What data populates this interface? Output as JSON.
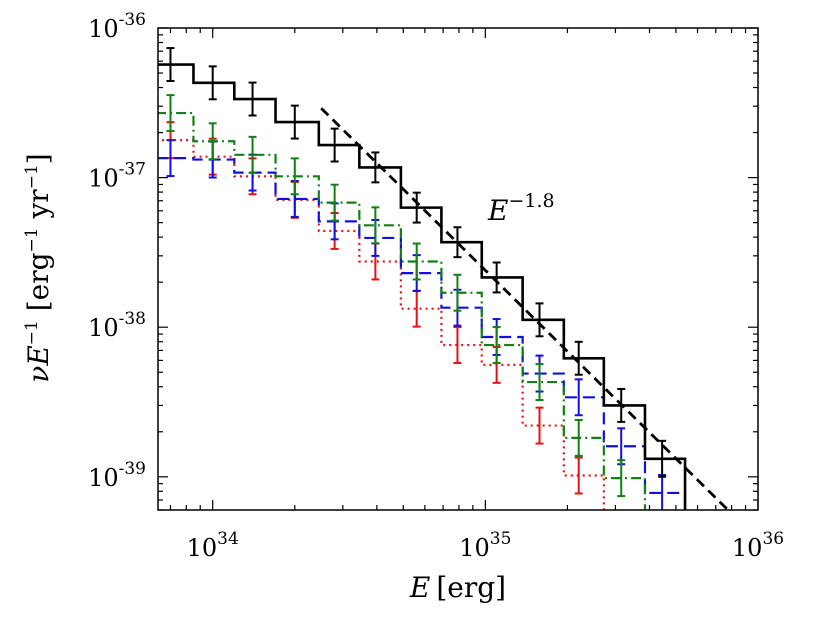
{
  "chart_data": {
    "type": "line",
    "title": "",
    "xlabel_italic": "E",
    "xlabel_unit": "[erg]",
    "ylabel_parts": [
      "νE",
      "−1",
      " [erg",
      "−1",
      " yr",
      "−1",
      "]"
    ],
    "xscale": "log",
    "yscale": "log",
    "xlim": [
      6.3e+33,
      1e+36
    ],
    "ylim": [
      6e-40,
      1e-36
    ],
    "x_ticks": [
      {
        "value": 1e+34,
        "base": "10",
        "exp": "34"
      },
      {
        "value": 1e+35,
        "base": "10",
        "exp": "35"
      },
      {
        "value": 1e+36,
        "base": "10",
        "exp": "36"
      }
    ],
    "y_ticks": [
      {
        "value": 1e-39,
        "base": "10",
        "exp": "-39"
      },
      {
        "value": 1e-38,
        "base": "10",
        "exp": "-38"
      },
      {
        "value": 1e-37,
        "base": "10",
        "exp": "-37"
      },
      {
        "value": 1e-36,
        "base": "10",
        "exp": "-36"
      }
    ],
    "power_law": {
      "label_base": "E",
      "label_exp": "−1.8",
      "index": -1.8,
      "ref_x": 1e+35,
      "ref_y": 2.4e-38,
      "x_range": [
        2.5e+34,
        8e+35
      ],
      "color": "#000000"
    },
    "series": [
      {
        "name": "total",
        "color": "#000000",
        "style": "solid",
        "edges": [
          6.2e+33,
          8.5e+33,
          1.2e+34,
          1.7e+34,
          2.45e+34,
          3.45e+34,
          4.9e+34,
          6.9e+34,
          9.7e+34,
          1.37e+35,
          1.94e+35,
          2.72e+35,
          3.85e+35,
          5.4e+35
        ],
        "values": [
          5.7e-37,
          4.3e-37,
          3.35e-37,
          2.35e-37,
          1.65e-37,
          1.17e-37,
          6.3e-38,
          3.7e-38,
          2.15e-38,
          1.12e-38,
          6.2e-39,
          3e-39,
          1.32e-39
        ],
        "points": [
          7e+33,
          1e+34,
          1.4e+34,
          2e+34,
          2.8e+34,
          3.95e+34,
          5.6e+34,
          7.9e+34,
          1.1e+35,
          1.58e+35,
          2.2e+35,
          3.15e+35,
          4.45e+35
        ],
        "errors": [
          0.11,
          0.11,
          0.11,
          0.11,
          0.11,
          0.1,
          0.1,
          0.1,
          0.1,
          0.11,
          0.11,
          0.11,
          0.12
        ]
      },
      {
        "name": "green",
        "color": "#128012",
        "style": "dashdot",
        "edges": [
          6.2e+33,
          8.5e+33,
          1.2e+34,
          1.7e+34,
          2.45e+34,
          3.45e+34,
          4.9e+34,
          6.9e+34,
          9.7e+34,
          1.37e+35,
          1.94e+35,
          2.72e+35,
          3.85e+35
        ],
        "values": [
          2.7e-37,
          1.75e-37,
          1.42e-37,
          1.02e-37,
          6.8e-38,
          4.8e-38,
          2.75e-38,
          1.7e-38,
          7.6e-39,
          4.3e-39,
          1.82e-39,
          9.8e-40
        ],
        "points": [
          7e+33,
          1e+34,
          1.4e+34,
          2e+34,
          2.8e+34,
          3.95e+34,
          5.6e+34,
          7.9e+34,
          1.1e+35,
          1.58e+35,
          2.2e+35,
          3.15e+35
        ],
        "errors": [
          0.12,
          0.12,
          0.12,
          0.12,
          0.12,
          0.12,
          0.12,
          0.12,
          0.12,
          0.12,
          0.12,
          0.12
        ]
      },
      {
        "name": "blue",
        "color": "#1010e0",
        "style": "dashed",
        "edges": [
          6.2e+33,
          8.5e+33,
          1.2e+34,
          1.7e+34,
          2.45e+34,
          3.45e+34,
          4.9e+34,
          6.9e+34,
          9.7e+34,
          1.37e+35,
          1.94e+35,
          2.72e+35,
          3.85e+35,
          5.4e+35
        ],
        "values": [
          1.35e-37,
          1.32e-37,
          1.08e-37,
          7.2e-38,
          5.1e-38,
          3.95e-38,
          2.3e-38,
          1.35e-38,
          8.6e-39,
          4.9e-39,
          3.4e-39,
          1.6e-39,
          7.8e-40
        ],
        "points": [
          7e+33,
          1e+34,
          1.4e+34,
          2e+34,
          2.8e+34,
          3.95e+34,
          5.6e+34,
          7.9e+34,
          1.1e+35,
          1.58e+35,
          2.2e+35,
          3.15e+35,
          4.45e+35
        ],
        "errors": [
          0.12,
          0.12,
          0.12,
          0.12,
          0.12,
          0.12,
          0.12,
          0.12,
          0.12,
          0.12,
          0.12,
          0.12,
          0.12
        ]
      },
      {
        "name": "red",
        "color": "#e81010",
        "style": "dotted",
        "edges": [
          6.2e+33,
          8.5e+33,
          1.2e+34,
          1.7e+34,
          2.45e+34,
          3.45e+34,
          4.9e+34,
          6.9e+34,
          9.7e+34,
          1.37e+35,
          1.94e+35,
          2.72e+35
        ],
        "values": [
          1.78e-37,
          1.38e-37,
          1.02e-37,
          7.1e-38,
          4.4e-38,
          2.75e-38,
          1.33e-38,
          7.6e-39,
          5.6e-39,
          2.2e-39,
          1.02e-39
        ],
        "points": [
          7e+33,
          1e+34,
          1.4e+34,
          2e+34,
          2.8e+34,
          3.95e+34,
          5.6e+34,
          7.9e+34,
          1.1e+35,
          1.58e+35,
          2.2e+35
        ],
        "errors": [
          0.12,
          0.12,
          0.12,
          0.12,
          0.12,
          0.12,
          0.12,
          0.12,
          0.12,
          0.12,
          0.12
        ]
      }
    ]
  }
}
